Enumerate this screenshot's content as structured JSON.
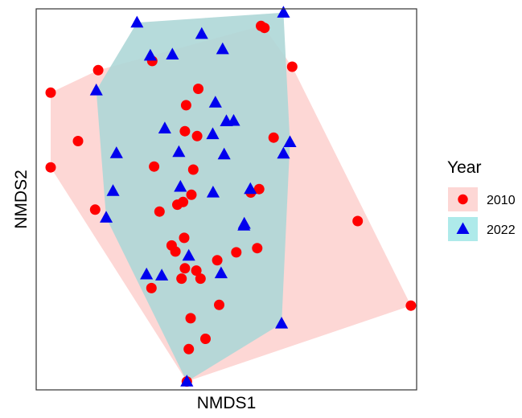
{
  "chart_data": {
    "type": "scatter",
    "title": "",
    "xlabel": "NMDS1",
    "ylabel": "NMDS2",
    "xlim": [
      0,
      100
    ],
    "ylim": [
      0,
      100
    ],
    "x_tick_labels": [],
    "y_tick_labels": [],
    "grid": false,
    "legend": {
      "title": "Year",
      "placement": "right"
    },
    "hulls": true,
    "series": [
      {
        "name": "2010",
        "marker": "circle",
        "color": "#ff0000",
        "hull_color": "#fdd7d5",
        "points": [
          [
            3.8,
            78.0
          ],
          [
            3.8,
            58.4
          ],
          [
            11.0,
            65.3
          ],
          [
            15.5,
            47.3
          ],
          [
            16.3,
            83.9
          ],
          [
            30.5,
            86.3
          ],
          [
            31.0,
            58.6
          ],
          [
            30.3,
            26.7
          ],
          [
            32.4,
            46.8
          ],
          [
            35.6,
            37.9
          ],
          [
            37.1,
            48.6
          ],
          [
            38.6,
            49.3
          ],
          [
            39.4,
            74.7
          ],
          [
            39.1,
            67.9
          ],
          [
            38.2,
            29.2
          ],
          [
            39.1,
            31.9
          ],
          [
            40.8,
            51.2
          ],
          [
            41.3,
            57.8
          ],
          [
            40.1,
            10.7
          ],
          [
            36.6,
            36.3
          ],
          [
            38.9,
            39.9
          ],
          [
            42.3,
            66.6
          ],
          [
            42.6,
            79.0
          ],
          [
            39.6,
            2.2
          ],
          [
            42.1,
            31.3
          ],
          [
            40.6,
            18.8
          ],
          [
            44.5,
            13.4
          ],
          [
            43.2,
            29.2
          ],
          [
            47.6,
            34.0
          ],
          [
            48.1,
            22.3
          ],
          [
            52.6,
            36.1
          ],
          [
            56.4,
            51.8
          ],
          [
            58.6,
            52.7
          ],
          [
            59.1,
            95.5
          ],
          [
            60.0,
            95.0
          ],
          [
            58.1,
            37.2
          ],
          [
            62.4,
            66.2
          ],
          [
            67.3,
            84.8
          ],
          [
            84.5,
            44.3
          ],
          [
            98.5,
            22.1
          ]
        ]
      },
      {
        "name": "2022",
        "marker": "triangle",
        "color": "#0000ee",
        "hull_color": "#aed7d7",
        "points": [
          [
            65.0,
            99.0
          ],
          [
            26.5,
            96.4
          ],
          [
            43.5,
            93.4
          ],
          [
            49.0,
            89.4
          ],
          [
            35.8,
            88.0
          ],
          [
            30.0,
            87.7
          ],
          [
            15.8,
            78.6
          ],
          [
            21.1,
            62.1
          ],
          [
            20.2,
            52.2
          ],
          [
            18.4,
            45.2
          ],
          [
            33.8,
            68.6
          ],
          [
            37.5,
            62.4
          ],
          [
            37.9,
            53.3
          ],
          [
            47.1,
            75.4
          ],
          [
            46.4,
            67.1
          ],
          [
            50.0,
            70.5
          ],
          [
            51.9,
            70.6
          ],
          [
            49.4,
            61.8
          ],
          [
            40.1,
            35.2
          ],
          [
            46.5,
            51.8
          ],
          [
            56.3,
            52.7
          ],
          [
            54.7,
            43.6
          ],
          [
            54.6,
            43.1
          ],
          [
            48.6,
            30.6
          ],
          [
            29.0,
            30.3
          ],
          [
            65.0,
            62.0
          ],
          [
            66.7,
            65.0
          ],
          [
            64.5,
            17.4
          ],
          [
            39.6,
            2.2
          ],
          [
            33.0,
            30.0
          ]
        ]
      }
    ]
  }
}
